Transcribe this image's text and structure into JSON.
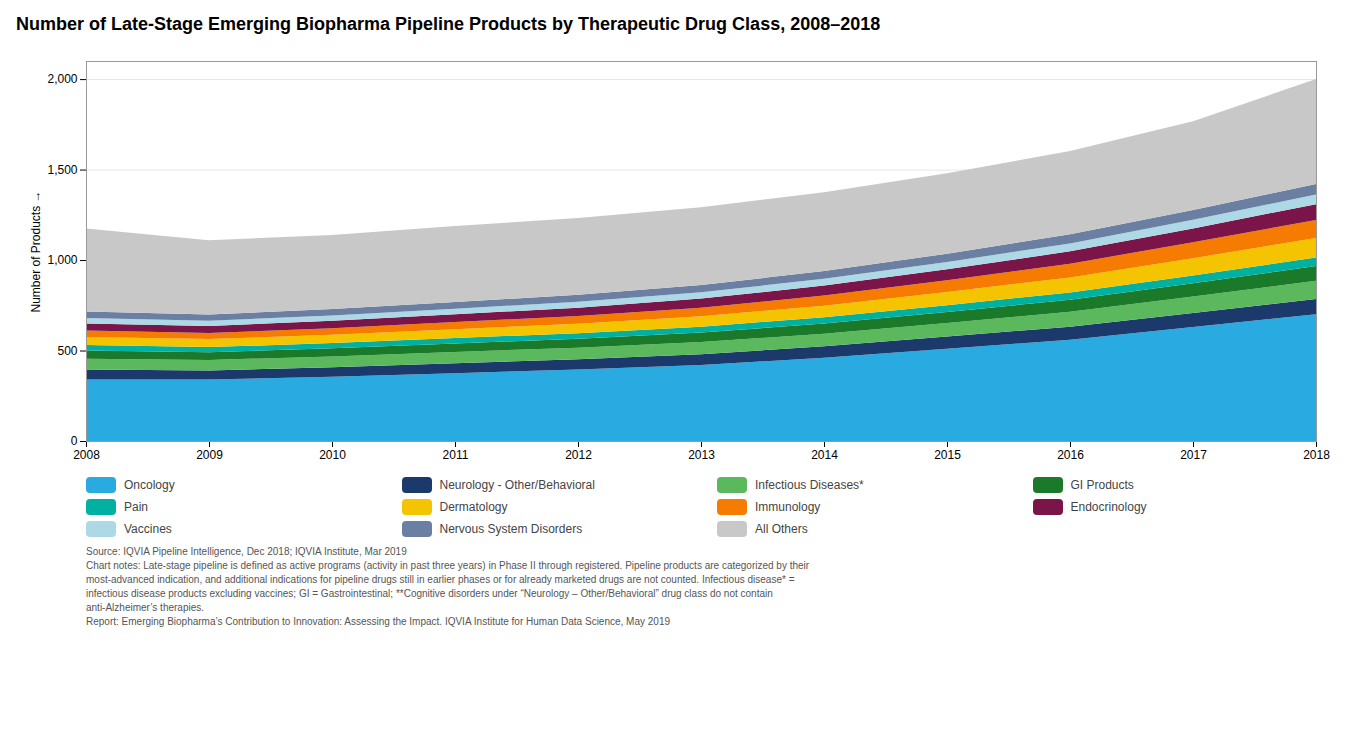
{
  "chart_data": {
    "type": "area",
    "stacked": true,
    "title": "Number of Late-Stage Emerging Biopharma Pipeline Products by Therapeutic Drug Class, 2008–2018",
    "ylabel": "Number of Products",
    "caption": "Source: IQVIA Pipeline Intelligence, Dec 2018; IQVIA Institute, Mar 2019\nChart notes: Late-stage pipeline is defined as active programs (activity in past three years) in Phase II through  registered. Pipeline products are categorized by their\nmost-advanced indication, and additional indications for pipeline drugs still in earlier phases or for already marketed drugs are not counted. Infectious disease* =\ninfectious disease products excluding vaccines; GI = Gastrointestinal; **Cognitive disorders under “Neurology – Other/Behavioral” drug class do not contain\nanti-Alzheimer’s therapies.\nReport: Emerging Biopharma’s Contribution to Innovation: Assessing the Impact. IQVIA Institute for Human Data Science, May 2019",
    "x": [
      2008,
      2009,
      2010,
      2011,
      2012,
      2013,
      2014,
      2015,
      2016,
      2017,
      2018
    ],
    "xlim": [
      2008,
      2018
    ],
    "xticks": [
      2008,
      2009,
      2010,
      2011,
      2012,
      2013,
      2014,
      2015,
      2016,
      2017,
      2018
    ],
    "ylim": [
      0,
      2100
    ],
    "yticks": [
      0,
      500,
      {
        "value": 1000,
        "label": "1,000"
      },
      {
        "value": 1500,
        "label": "1,500"
      },
      {
        "value": 2000,
        "label": "2,000"
      }
    ],
    "grid": true,
    "legend": "bottom",
    "series": [
      {
        "name": "Oncology",
        "color": "#29ABE2",
        "values": [
          340,
          340,
          355,
          375,
          395,
          420,
          460,
          510,
          560,
          630,
          700
        ]
      },
      {
        "name": "Neurology - Other/Behavioral",
        "color": "#1B3A6B",
        "values": [
          55,
          50,
          52,
          55,
          57,
          60,
          63,
          67,
          72,
          78,
          85
        ]
      },
      {
        "name": "Infectious Diseases*",
        "color": "#5CB85C",
        "values": [
          60,
          58,
          60,
          62,
          64,
          67,
          70,
          75,
          82,
          90,
          100
        ]
      },
      {
        "name": "GI Products",
        "color": "#1A7A2A",
        "values": [
          45,
          43,
          45,
          47,
          49,
          52,
          56,
          61,
          67,
          74,
          82
        ]
      },
      {
        "name": "Pain",
        "color": "#00B0A0",
        "values": [
          30,
          28,
          29,
          30,
          31,
          33,
          35,
          37,
          40,
          43,
          47
        ]
      },
      {
        "name": "Dermatology",
        "color": "#F5C400",
        "values": [
          45,
          44,
          46,
          49,
          52,
          57,
          64,
          73,
          83,
          95,
          108
        ]
      },
      {
        "name": "Immunology",
        "color": "#F57C00",
        "values": [
          35,
          34,
          36,
          39,
          43,
          48,
          56,
          65,
          76,
          88,
          100
        ]
      },
      {
        "name": "Endocrinology",
        "color": "#7B1449",
        "values": [
          40,
          39,
          41,
          43,
          46,
          50,
          55,
          61,
          68,
          77,
          87
        ]
      },
      {
        "name": "Vaccines",
        "color": "#ADD8E6",
        "values": [
          30,
          29,
          30,
          31,
          33,
          35,
          37,
          40,
          44,
          48,
          53
        ]
      },
      {
        "name": "Nervous System Disorders",
        "color": "#6B7FA3",
        "values": [
          35,
          34,
          35,
          37,
          38,
          40,
          43,
          46,
          50,
          54,
          58
        ]
      },
      {
        "name": "All Others",
        "color": "#C8C8C8",
        "values": [
          460,
          410,
          410,
          420,
          425,
          430,
          435,
          445,
          460,
          490,
          580
        ]
      }
    ]
  }
}
